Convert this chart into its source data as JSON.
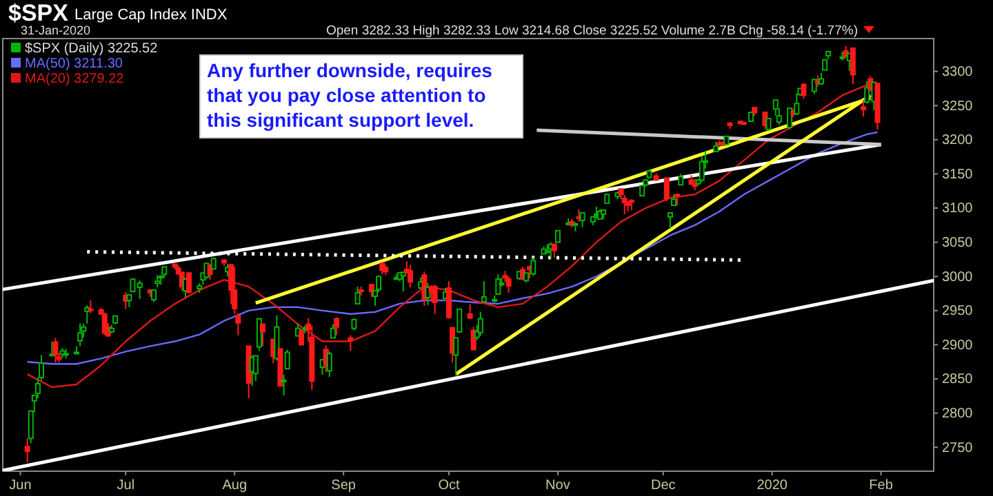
{
  "chart_data": {
    "type": "candlestick",
    "title": "$SPX",
    "subtitle": "Large Cap Index INDX",
    "annotations": [
      "31-Jan-2020",
      "Open 3282.33  High 3282.33  Low 3214.68  Close 3225.52  Volume 2.7B  Chg -58.14 (-1.77%)",
      "Any further downside, requires that you pay close attention to this significant support level."
    ],
    "xlim": [
      "2019-05-27",
      "2020-02-16"
    ],
    "xticks": [
      {
        "value": "2019-06-01",
        "label": "Jun"
      },
      {
        "value": "2019-07-01",
        "label": "Jul"
      },
      {
        "value": "2019-08-01",
        "label": "Aug"
      },
      {
        "value": "2019-09-01",
        "label": "Sep"
      },
      {
        "value": "2019-10-01",
        "label": "Oct"
      },
      {
        "value": "2019-11-01",
        "label": "Nov"
      },
      {
        "value": "2019-12-01",
        "label": "Dec"
      },
      {
        "value": "2020-01-01",
        "label": "2020"
      },
      {
        "value": "2020-02-01",
        "label": "Feb"
      }
    ],
    "ylim": [
      2715,
      3348
    ],
    "yticks": [
      2750,
      2800,
      2850,
      2900,
      2950,
      3000,
      3050,
      3100,
      3150,
      3200,
      3250,
      3300
    ],
    "legend": "top left",
    "series": [
      {
        "name": "$SPX (Daily) 3225.52",
        "x": [
          "2019-06-03",
          "2019-06-04",
          "2019-06-05",
          "2019-06-06",
          "2019-06-07",
          "2019-06-10",
          "2019-06-11",
          "2019-06-12",
          "2019-06-13",
          "2019-06-14",
          "2019-06-17",
          "2019-06-18",
          "2019-06-19",
          "2019-06-20",
          "2019-06-21",
          "2019-06-24",
          "2019-06-25",
          "2019-06-26",
          "2019-06-27",
          "2019-06-28",
          "2019-07-01",
          "2019-07-02",
          "2019-07-03",
          "2019-07-05",
          "2019-07-08",
          "2019-07-09",
          "2019-07-10",
          "2019-07-11",
          "2019-07-12",
          "2019-07-15",
          "2019-07-16",
          "2019-07-17",
          "2019-07-18",
          "2019-07-19",
          "2019-07-22",
          "2019-07-23",
          "2019-07-24",
          "2019-07-25",
          "2019-07-26",
          "2019-07-29",
          "2019-07-30",
          "2019-07-31",
          "2019-08-01",
          "2019-08-02",
          "2019-08-05",
          "2019-08-06",
          "2019-08-07",
          "2019-08-08",
          "2019-08-09",
          "2019-08-12",
          "2019-08-13",
          "2019-08-14",
          "2019-08-15",
          "2019-08-16",
          "2019-08-19",
          "2019-08-20",
          "2019-08-21",
          "2019-08-22",
          "2019-08-23",
          "2019-08-26",
          "2019-08-27",
          "2019-08-28",
          "2019-08-29",
          "2019-08-30",
          "2019-09-03",
          "2019-09-04",
          "2019-09-05",
          "2019-09-06",
          "2019-09-09",
          "2019-09-10",
          "2019-09-11",
          "2019-09-12",
          "2019-09-13",
          "2019-09-16",
          "2019-09-17",
          "2019-09-18",
          "2019-09-19",
          "2019-09-20",
          "2019-09-23",
          "2019-09-24",
          "2019-09-25",
          "2019-09-26",
          "2019-09-27",
          "2019-09-30",
          "2019-10-01",
          "2019-10-02",
          "2019-10-03",
          "2019-10-04",
          "2019-10-07",
          "2019-10-08",
          "2019-10-09",
          "2019-10-10",
          "2019-10-11",
          "2019-10-14",
          "2019-10-15",
          "2019-10-16",
          "2019-10-17",
          "2019-10-18",
          "2019-10-21",
          "2019-10-22",
          "2019-10-23",
          "2019-10-24",
          "2019-10-25",
          "2019-10-28",
          "2019-10-29",
          "2019-10-30",
          "2019-10-31",
          "2019-11-01",
          "2019-11-04",
          "2019-11-05",
          "2019-11-06",
          "2019-11-07",
          "2019-11-08",
          "2019-11-11",
          "2019-11-12",
          "2019-11-13",
          "2019-11-14",
          "2019-11-15",
          "2019-11-18",
          "2019-11-19",
          "2019-11-20",
          "2019-11-21",
          "2019-11-22",
          "2019-11-25",
          "2019-11-26",
          "2019-11-27",
          "2019-11-29",
          "2019-12-02",
          "2019-12-03",
          "2019-12-04",
          "2019-12-05",
          "2019-12-06",
          "2019-12-09",
          "2019-12-10",
          "2019-12-11",
          "2019-12-12",
          "2019-12-13",
          "2019-12-16",
          "2019-12-17",
          "2019-12-18",
          "2019-12-19",
          "2019-12-20",
          "2019-12-23",
          "2019-12-24",
          "2019-12-26",
          "2019-12-27",
          "2019-12-30",
          "2019-12-31",
          "2020-01-02",
          "2020-01-03",
          "2020-01-06",
          "2020-01-07",
          "2020-01-08",
          "2020-01-09",
          "2020-01-10",
          "2020-01-13",
          "2020-01-14",
          "2020-01-15",
          "2020-01-16",
          "2020-01-17",
          "2020-01-21",
          "2020-01-22",
          "2020-01-23",
          "2020-01-24",
          "2020-01-27",
          "2020-01-28",
          "2020-01-29",
          "2020-01-30",
          "2020-01-31"
        ],
        "ohlc": [
          [
            2751,
            2763,
            2728,
            2744
          ],
          [
            2763,
            2804,
            2756,
            2803
          ],
          [
            2818,
            2827,
            2801,
            2826
          ],
          [
            2829,
            2852,
            2822,
            2843
          ],
          [
            2852,
            2885,
            2848,
            2873
          ],
          [
            2885,
            2904,
            2885,
            2886
          ],
          [
            2904,
            2910,
            2874,
            2885
          ],
          [
            2882,
            2888,
            2874,
            2879
          ],
          [
            2886,
            2895,
            2881,
            2891
          ],
          [
            2886,
            2894,
            2880,
            2887
          ],
          [
            2889,
            2898,
            2886,
            2889
          ],
          [
            2906,
            2931,
            2898,
            2917
          ],
          [
            2920,
            2931,
            2911,
            2926
          ],
          [
            2949,
            2958,
            2931,
            2954
          ],
          [
            2952,
            2965,
            2946,
            2950
          ],
          [
            2951,
            2954,
            2944,
            2945
          ],
          [
            2945,
            2947,
            2914,
            2917
          ],
          [
            2926,
            2932,
            2912,
            2913
          ],
          [
            2919,
            2929,
            2917,
            2924
          ],
          [
            2932,
            2943,
            2930,
            2942
          ],
          [
            2972,
            2977,
            2952,
            2964
          ],
          [
            2965,
            2973,
            2955,
            2973
          ],
          [
            2978,
            2996,
            2977,
            2996
          ],
          [
            2984,
            2994,
            2967,
            2990
          ],
          [
            2980,
            2981,
            2970,
            2976
          ],
          [
            2966,
            2981,
            2963,
            2980
          ],
          [
            2990,
            3002,
            2984,
            2993
          ],
          [
            2999,
            3002,
            2988,
            3000
          ],
          [
            3003,
            3014,
            2998,
            3014
          ],
          [
            3018,
            3018,
            3010,
            3014
          ],
          [
            3012,
            3016,
            3002,
            3004
          ],
          [
            3006,
            3006,
            2979,
            2985
          ],
          [
            2979,
            2998,
            2969,
            2996
          ],
          [
            3005,
            3006,
            2975,
            2977
          ],
          [
            2982,
            2990,
            2976,
            2986
          ],
          [
            2995,
            3005,
            2988,
            3005
          ],
          [
            2999,
            3019,
            2996,
            3019
          ],
          [
            3017,
            3017,
            2995,
            3003
          ],
          [
            3011,
            3028,
            3011,
            3026
          ],
          [
            3024,
            3025,
            3015,
            3020
          ],
          [
            3007,
            3018,
            3000,
            3013
          ],
          [
            3017,
            3018,
            2959,
            2980
          ],
          [
            2980,
            3014,
            2945,
            2953
          ],
          [
            2943,
            2946,
            2914,
            2932
          ],
          [
            2898,
            2898,
            2822,
            2844
          ],
          [
            2861,
            2884,
            2840,
            2881
          ],
          [
            2858,
            2884,
            2847,
            2884
          ],
          [
            2897,
            2939,
            2891,
            2938
          ],
          [
            2930,
            2931,
            2898,
            2919
          ],
          [
            2908,
            2908,
            2873,
            2883
          ],
          [
            2880,
            2943,
            2877,
            2926
          ],
          [
            2894,
            2894,
            2839,
            2840
          ],
          [
            2846,
            2856,
            2826,
            2848
          ],
          [
            2865,
            2893,
            2865,
            2889
          ],
          [
            2913,
            2932,
            2913,
            2924
          ],
          [
            2920,
            2923,
            2899,
            2900
          ],
          [
            2922,
            2928,
            2917,
            2924
          ],
          [
            2930,
            2939,
            2904,
            2922
          ],
          [
            2911,
            2928,
            2834,
            2847
          ],
          [
            2867,
            2879,
            2856,
            2878
          ],
          [
            2893,
            2899,
            2860,
            2869
          ],
          [
            2862,
            2890,
            2853,
            2887
          ],
          [
            2910,
            2930,
            2910,
            2924
          ],
          [
            2938,
            2940,
            2914,
            2926
          ],
          [
            2910,
            2914,
            2891,
            2906
          ],
          [
            2924,
            2938,
            2921,
            2937
          ],
          [
            2960,
            2985,
            2960,
            2976
          ],
          [
            2980,
            2985,
            2972,
            2979
          ],
          [
            2988,
            2989,
            2970,
            2978
          ],
          [
            2971,
            2979,
            2957,
            2979
          ],
          [
            2981,
            3001,
            2977,
            3000
          ],
          [
            3019,
            3021,
            3003,
            3009
          ],
          [
            3013,
            3017,
            3002,
            3007
          ],
          [
            2996,
            3003,
            2995,
            2998
          ],
          [
            2996,
            3006,
            2993,
            3005
          ],
          [
            3001,
            3007,
            2978,
            3006
          ],
          [
            3010,
            3022,
            3004,
            3006
          ],
          [
            3008,
            3017,
            2984,
            2992
          ],
          [
            2983,
            2999,
            2982,
            2992
          ],
          [
            3002,
            3007,
            2957,
            2966
          ],
          [
            2969,
            2990,
            2958,
            2984
          ],
          [
            2985,
            2987,
            2963,
            2977
          ],
          [
            2985,
            2988,
            2945,
            2962
          ],
          [
            2968,
            2983,
            2967,
            2977
          ],
          [
            2983,
            2993,
            2938,
            2940
          ],
          [
            2925,
            2925,
            2874,
            2888
          ],
          [
            2885,
            2911,
            2855,
            2910
          ],
          [
            2919,
            2953,
            2917,
            2952
          ],
          [
            2945,
            2959,
            2939,
            2939
          ],
          [
            2921,
            2926,
            2892,
            2893
          ],
          [
            2911,
            2929,
            2907,
            2919
          ],
          [
            2918,
            2948,
            2913,
            2938
          ],
          [
            2963,
            2993,
            2963,
            2970
          ],
          [
            2966,
            2972,
            2962,
            2966
          ],
          [
            2974,
            3003,
            2973,
            2996
          ],
          [
            2990,
            2998,
            2985,
            2990
          ],
          [
            3001,
            3008,
            2992,
            2998
          ],
          [
            2996,
            3000,
            2976,
            2986
          ],
          [
            2997,
            3007,
            2995,
            3007
          ],
          [
            3010,
            3014,
            2995,
            2996
          ],
          [
            2994,
            3005,
            2991,
            3005
          ],
          [
            3014,
            3016,
            2997,
            3010
          ],
          [
            3004,
            3028,
            3001,
            3023
          ],
          [
            3033,
            3044,
            3032,
            3040
          ],
          [
            3036,
            3047,
            3034,
            3037
          ],
          [
            3040,
            3050,
            3026,
            3047
          ],
          [
            3047,
            3047,
            3027,
            3038
          ],
          [
            3050,
            3067,
            3050,
            3067
          ],
          [
            3078,
            3085,
            3075,
            3078
          ],
          [
            3080,
            3084,
            3072,
            3075
          ],
          [
            3075,
            3079,
            3066,
            3077
          ],
          [
            3087,
            3098,
            3080,
            3085
          ],
          [
            3082,
            3094,
            3072,
            3093
          ],
          [
            3080,
            3088,
            3075,
            3087
          ],
          [
            3089,
            3102,
            3085,
            3091
          ],
          [
            3084,
            3098,
            3083,
            3095
          ],
          [
            3091,
            3098,
            3084,
            3097
          ],
          [
            3107,
            3121,
            3107,
            3120
          ],
          [
            3117,
            3124,
            3113,
            3122
          ],
          [
            3128,
            3128,
            3113,
            3120
          ],
          [
            3114,
            3119,
            3091,
            3108
          ],
          [
            3109,
            3110,
            3095,
            3104
          ],
          [
            3111,
            3113,
            3097,
            3110
          ],
          [
            3118,
            3133,
            3118,
            3133
          ],
          [
            3134,
            3142,
            3131,
            3141
          ],
          [
            3145,
            3155,
            3143,
            3154
          ],
          [
            3147,
            3151,
            3140,
            3141
          ],
          [
            3144,
            3144,
            3110,
            3114
          ],
          [
            3087,
            3094,
            3070,
            3093
          ],
          [
            3104,
            3120,
            3104,
            3113
          ],
          [
            3120,
            3120,
            3104,
            3117
          ],
          [
            3134,
            3150,
            3134,
            3146
          ],
          [
            3141,
            3148,
            3135,
            3135
          ],
          [
            3135,
            3143,
            3126,
            3132
          ],
          [
            3136,
            3143,
            3133,
            3141
          ],
          [
            3141,
            3176,
            3138,
            3168
          ],
          [
            3167,
            3183,
            3158,
            3169
          ],
          [
            3183,
            3197,
            3183,
            3191
          ],
          [
            3195,
            3199,
            3191,
            3193
          ],
          [
            3196,
            3198,
            3191,
            3192
          ],
          [
            3193,
            3205,
            3192,
            3205
          ],
          [
            3224,
            3226,
            3216,
            3221
          ],
          [
            3227,
            3227,
            3222,
            3224
          ],
          [
            3225,
            3226,
            3221,
            3224
          ],
          [
            3227,
            3240,
            3227,
            3240
          ],
          [
            3247,
            3248,
            3235,
            3240
          ],
          [
            3240,
            3240,
            3216,
            3221
          ],
          [
            3215,
            3231,
            3213,
            3231
          ],
          [
            3245,
            3258,
            3235,
            3258
          ],
          [
            3226,
            3246,
            3222,
            3235
          ],
          [
            3218,
            3247,
            3215,
            3246
          ],
          [
            3241,
            3245,
            3233,
            3237
          ],
          [
            3238,
            3268,
            3236,
            3253
          ],
          [
            3266,
            3275,
            3264,
            3275
          ],
          [
            3281,
            3282,
            3260,
            3265
          ],
          [
            3271,
            3289,
            3267,
            3288
          ],
          [
            3285,
            3294,
            3278,
            3283
          ],
          [
            3282,
            3298,
            3280,
            3289
          ],
          [
            3302,
            3317,
            3302,
            3317
          ],
          [
            3323,
            3329,
            3318,
            3329
          ],
          [
            3321,
            3329,
            3316,
            3321
          ],
          [
            3330,
            3337,
            3321,
            3321
          ],
          [
            3316,
            3326,
            3301,
            3326
          ],
          [
            3334,
            3334,
            3281,
            3295
          ],
          [
            3248,
            3258,
            3234,
            3244
          ],
          [
            3255,
            3286,
            3253,
            3276
          ],
          [
            3289,
            3293,
            3271,
            3273
          ],
          [
            3256,
            3285,
            3243,
            3284
          ],
          [
            3282.33,
            3282.33,
            3214.68,
            3225.52
          ]
        ]
      },
      {
        "name": "MA(50) 3211.30",
        "type": "line",
        "color": "#6a6aff",
        "x": [
          "2019-06-03",
          "2019-06-10",
          "2019-06-17",
          "2019-06-24",
          "2019-07-01",
          "2019-07-08",
          "2019-07-15",
          "2019-07-22",
          "2019-07-29",
          "2019-08-05",
          "2019-08-12",
          "2019-08-19",
          "2019-08-26",
          "2019-09-03",
          "2019-09-10",
          "2019-09-17",
          "2019-09-24",
          "2019-10-01",
          "2019-10-08",
          "2019-10-15",
          "2019-10-22",
          "2019-10-29",
          "2019-11-05",
          "2019-11-12",
          "2019-11-19",
          "2019-11-26",
          "2019-12-03",
          "2019-12-10",
          "2019-12-17",
          "2019-12-24",
          "2019-12-31",
          "2020-01-07",
          "2020-01-14",
          "2020-01-21",
          "2020-01-28",
          "2020-01-31"
        ],
        "values": [
          2875,
          2872,
          2872,
          2880,
          2890,
          2898,
          2905,
          2915,
          2935,
          2950,
          2955,
          2955,
          2950,
          2945,
          2948,
          2960,
          2965,
          2965,
          2962,
          2960,
          2968,
          2975,
          2985,
          3000,
          3020,
          3040,
          3060,
          3075,
          3095,
          3120,
          3140,
          3160,
          3180,
          3195,
          3208,
          3211
        ]
      },
      {
        "name": "MA(20) 3279.22",
        "type": "line",
        "color": "#e01818",
        "x": [
          "2019-06-03",
          "2019-06-10",
          "2019-06-17",
          "2019-06-24",
          "2019-07-01",
          "2019-07-08",
          "2019-07-15",
          "2019-07-22",
          "2019-07-29",
          "2019-08-05",
          "2019-08-12",
          "2019-08-19",
          "2019-08-26",
          "2019-09-03",
          "2019-09-10",
          "2019-09-17",
          "2019-09-24",
          "2019-10-01",
          "2019-10-08",
          "2019-10-15",
          "2019-10-22",
          "2019-10-29",
          "2019-11-05",
          "2019-11-12",
          "2019-11-19",
          "2019-11-26",
          "2019-12-03",
          "2019-12-10",
          "2019-12-17",
          "2019-12-24",
          "2019-12-31",
          "2020-01-07",
          "2020-01-14",
          "2020-01-21",
          "2020-01-28",
          "2020-01-31"
        ],
        "values": [
          2857,
          2838,
          2842,
          2870,
          2905,
          2935,
          2960,
          2980,
          2995,
          2985,
          2960,
          2930,
          2905,
          2905,
          2920,
          2955,
          2985,
          2980,
          2965,
          2955,
          2960,
          2985,
          3015,
          3050,
          3080,
          3100,
          3115,
          3120,
          3140,
          3170,
          3200,
          3220,
          3240,
          3265,
          3280,
          3279
        ]
      },
      {
        "type": "line",
        "color": "#ffffff",
        "line_style": "solid",
        "x": [
          "2019-05-27",
          "2020-02-16"
        ],
        "values": [
          2716,
          2994
        ]
      },
      {
        "type": "line",
        "color": "#ffffff",
        "line_style": "solid",
        "x": [
          "2019-05-27",
          "2020-02-01"
        ],
        "values": [
          2981,
          3193
        ]
      },
      {
        "type": "line",
        "color": "#c8c8c8",
        "line_style": "solid",
        "x": [
          "2019-10-26",
          "2020-02-01"
        ],
        "values": [
          3214,
          3193
        ]
      },
      {
        "type": "line",
        "color": "#ffff33",
        "line_style": "solid",
        "x": [
          "2019-08-07",
          "2020-01-29"
        ],
        "values": [
          2961,
          3261
        ]
      },
      {
        "type": "line",
        "color": "#ffff33",
        "line_style": "solid",
        "x": [
          "2019-10-03",
          "2020-01-29"
        ],
        "values": [
          2857,
          3265
        ]
      },
      {
        "type": "line",
        "color": "#ffffff",
        "line_style": "dotted",
        "x": [
          "2019-06-20",
          "2019-12-23"
        ],
        "values": [
          3036,
          3024
        ]
      }
    ]
  }
}
